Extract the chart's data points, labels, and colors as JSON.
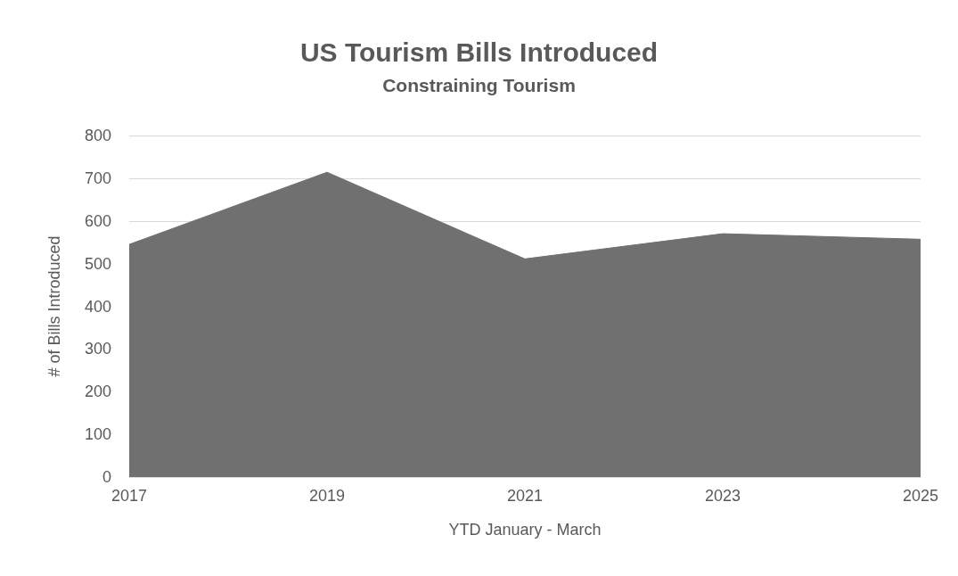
{
  "chart_data": {
    "type": "area",
    "title": "US Tourism Bills Introduced",
    "subtitle": "Constraining Tourism",
    "xlabel": "YTD January - March",
    "ylabel": "# of Bills Introduced",
    "categories": [
      "2017",
      "2019",
      "2021",
      "2023",
      "2025"
    ],
    "series": [
      {
        "color": "#707070",
        "values": [
          545,
          714,
          511,
          570,
          557
        ]
      }
    ],
    "ylim": [
      0,
      800
    ],
    "yticks": [
      0,
      100,
      200,
      300,
      400,
      500,
      600,
      700,
      800
    ],
    "grid": "y"
  }
}
